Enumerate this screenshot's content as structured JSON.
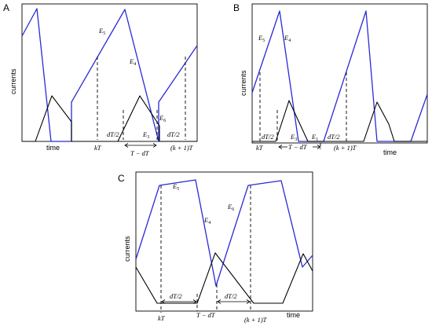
{
  "panels": {
    "a": {
      "letter": "A",
      "ylabel": "currents",
      "xlabel": "time",
      "curve_labels": {
        "e5": "E",
        "e5_sub": "5",
        "e4": "E",
        "e4_sub": "4",
        "e6": "E",
        "e6_sub": "6",
        "e3": "E",
        "e3_sub": "3"
      },
      "annotations": {
        "dt_half_1": "dT/2",
        "dt_half_2": "dT/2",
        "t_minus_dt": "T − dT",
        "kt": "kT",
        "k1t": "(k + 1)T"
      }
    },
    "b": {
      "letter": "B",
      "ylabel": "currents",
      "xlabel": "time",
      "curve_labels": {
        "e5": "E",
        "e5_sub": "5",
        "e4": "E",
        "e4_sub": "4",
        "e3": "E",
        "e3_sub": "3",
        "e1": "E",
        "e1_sub": "1"
      },
      "annotations": {
        "dt_half_1": "dT/2",
        "dt_half_2": "dT/2",
        "t_minus_dt": "T − dT",
        "kt": "kT",
        "k1t": "(k + 1)T"
      }
    },
    "c": {
      "letter": "C",
      "ylabel": "currents",
      "xlabel": "time",
      "curve_labels": {
        "e5": "E",
        "e5_sub": "5",
        "e4": "E",
        "e4_sub": "4",
        "e6": "E",
        "e6_sub": "6"
      },
      "annotations": {
        "dt_half_1": "dT/2",
        "dt_half_2": "dT/2",
        "t_minus_dt": "T − dT",
        "kt": "kT",
        "k1t": "(k + 1)T"
      }
    }
  },
  "colors": {
    "blue_curve": "#2a2ad6",
    "black_curve": "#000000"
  }
}
